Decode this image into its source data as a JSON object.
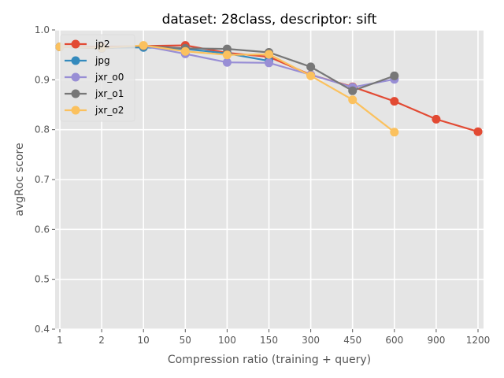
{
  "chart_data": {
    "type": "line",
    "title": "dataset: 28class, descriptor: sift",
    "xlabel": "Compression ratio (training + query)",
    "ylabel": "avgRoc score",
    "categories": [
      "1",
      "2",
      "10",
      "50",
      "100",
      "150",
      "300",
      "450",
      "600",
      "900",
      "1200"
    ],
    "yticks": [
      "0.4",
      "0.5",
      "0.6",
      "0.7",
      "0.8",
      "0.9",
      "1.0"
    ],
    "ylim": [
      0.4,
      1.0
    ],
    "grid": true,
    "legend_position": "top-left",
    "series": [
      {
        "name": "jp2",
        "color": "#E24A33",
        "values": [
          0.966,
          0.966,
          0.968,
          0.969,
          0.954,
          0.946,
          0.91,
          0.886,
          0.857,
          0.821,
          0.796
        ]
      },
      {
        "name": "jpg",
        "color": "#348ABD",
        "values": [
          0.966,
          0.964,
          0.965,
          0.962,
          0.953,
          0.938,
          null,
          null,
          null,
          null,
          null
        ]
      },
      {
        "name": "jxr_o0",
        "color": "#988ED5",
        "values": [
          0.966,
          0.963,
          0.968,
          0.952,
          0.935,
          0.934,
          0.91,
          0.885,
          0.901,
          null,
          null
        ]
      },
      {
        "name": "jxr_o1",
        "color": "#777777",
        "values": [
          0.966,
          0.963,
          0.968,
          0.963,
          0.962,
          0.955,
          0.926,
          0.878,
          0.908,
          null,
          null
        ]
      },
      {
        "name": "jxr_o2",
        "color": "#FBC15E",
        "values": [
          0.966,
          0.964,
          0.969,
          0.957,
          0.95,
          0.951,
          0.908,
          0.86,
          0.795,
          null,
          null
        ]
      }
    ]
  }
}
